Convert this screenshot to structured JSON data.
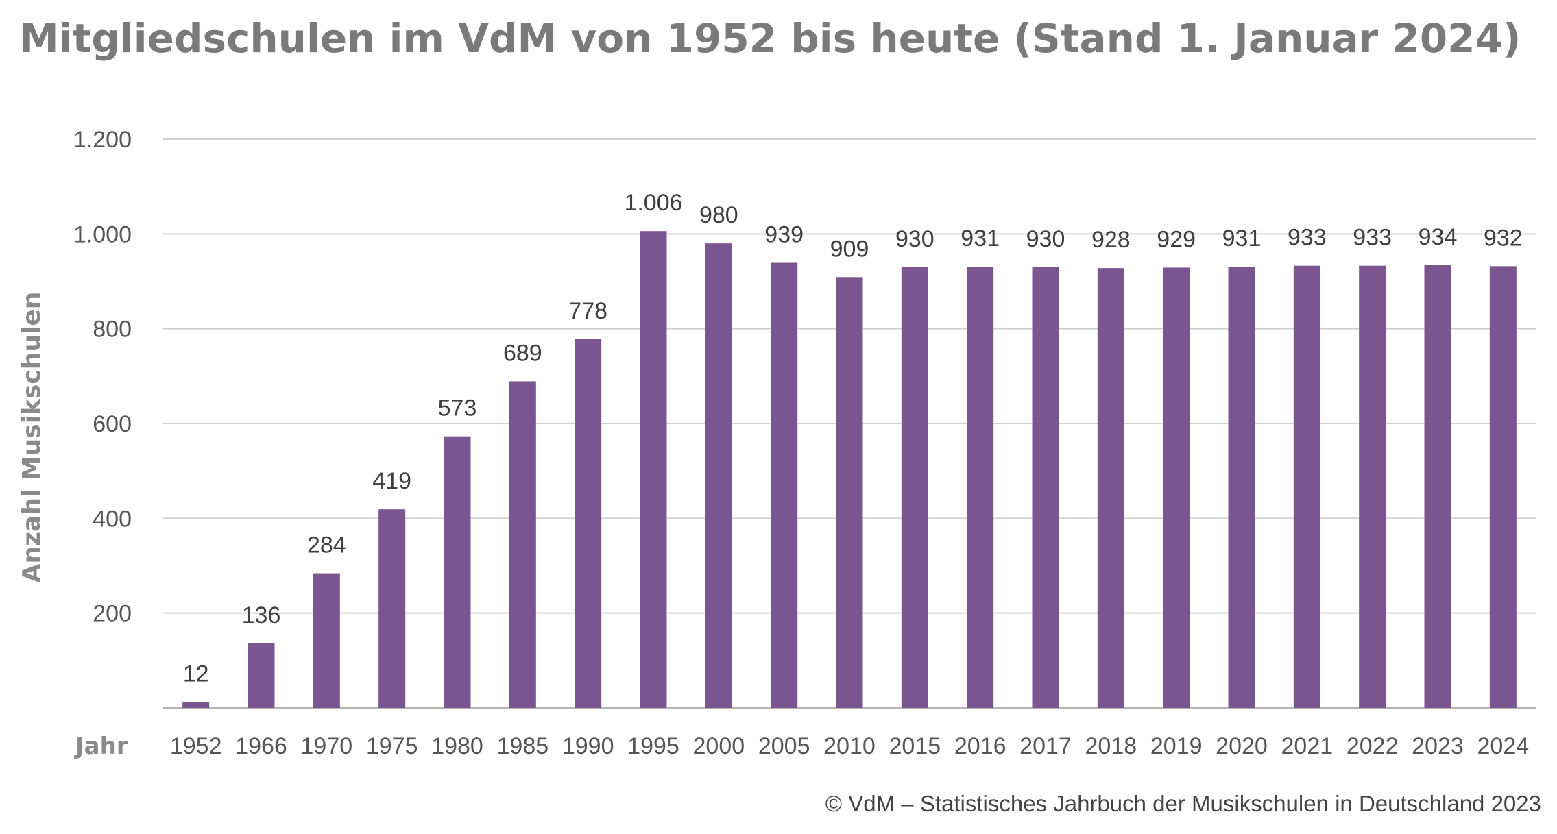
{
  "chart_data": {
    "type": "bar",
    "title": "Mitgliedschulen im VdM von 1952 bis heute (Stand 1. Januar 2024)",
    "xlabel": "Jahr",
    "ylabel": "Anzahl Musikschulen",
    "categories": [
      "1952",
      "1966",
      "1970",
      "1975",
      "1980",
      "1985",
      "1990",
      "1995",
      "2000",
      "2005",
      "2010",
      "2015",
      "2016",
      "2017",
      "2018",
      "2019",
      "2020",
      "2021",
      "2022",
      "2023",
      "2024"
    ],
    "values": [
      12,
      136,
      284,
      419,
      573,
      689,
      778,
      1006,
      980,
      939,
      909,
      930,
      931,
      930,
      928,
      929,
      931,
      933,
      933,
      934,
      932
    ],
    "value_labels": [
      "12",
      "136",
      "284",
      "419",
      "573",
      "689",
      "778",
      "1.006",
      "980",
      "939",
      "909",
      "930",
      "931",
      "930",
      "928",
      "929",
      "931",
      "933",
      "933",
      "934",
      "932"
    ],
    "ylim": [
      0,
      1200
    ],
    "yticks": [
      200,
      400,
      600,
      800,
      1000,
      1200
    ],
    "ytick_labels": [
      "200",
      "400",
      "600",
      "800",
      "1.000",
      "1.200"
    ],
    "grid": true,
    "legend": "none",
    "bar_color": "#7b5590",
    "grid_color": "#d0d0d0"
  },
  "source": "© VdM – Statistisches Jahrbuch der Musikschulen in Deutschland 2023"
}
